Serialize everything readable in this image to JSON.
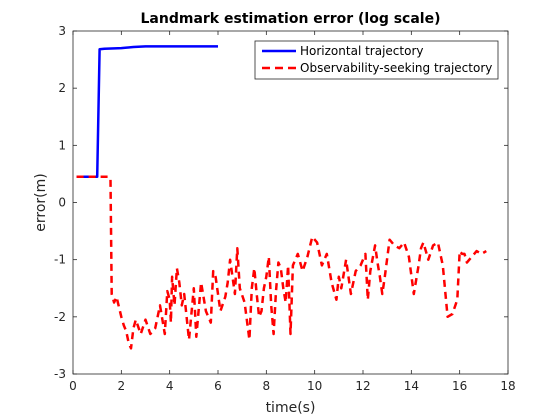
{
  "chart_data": {
    "type": "line",
    "title": "Landmark estimation error (log scale)",
    "xlabel": "time(s)",
    "ylabel": "error(m)",
    "xlim": [
      0,
      18
    ],
    "ylim": [
      -3,
      3
    ],
    "xticks": [
      0,
      2,
      4,
      6,
      8,
      10,
      12,
      14,
      16,
      18
    ],
    "yticks": [
      -3,
      -2,
      -1,
      0,
      1,
      2,
      3
    ],
    "grid": false,
    "legend_position": "top-right",
    "series": [
      {
        "name": "Horizontal trajectory",
        "color": "#0000ff",
        "line_style": "solid",
        "x": [
          0.15,
          1.0,
          1.1,
          1.3,
          2.0,
          2.5,
          3.0,
          4.0,
          5.0,
          6.0
        ],
        "y": [
          0.45,
          0.45,
          2.68,
          2.69,
          2.7,
          2.72,
          2.73,
          2.73,
          2.73,
          2.73
        ]
      },
      {
        "name": "Observability-seeking trajectory",
        "color": "#ff0000",
        "line_style": "dashed",
        "x": [
          0.15,
          1.0,
          1.1,
          1.5,
          1.55,
          1.6,
          1.7,
          1.8,
          2.0,
          2.1,
          2.2,
          2.3,
          2.4,
          2.5,
          2.6,
          2.8,
          3.0,
          3.2,
          3.4,
          3.6,
          3.8,
          3.9,
          4.0,
          4.05,
          4.1,
          4.2,
          4.3,
          4.4,
          4.5,
          4.6,
          4.8,
          4.9,
          5.0,
          5.1,
          5.3,
          5.5,
          5.7,
          5.8,
          5.9,
          6.1,
          6.3,
          6.4,
          6.5,
          6.6,
          6.7,
          6.8,
          6.9,
          7.1,
          7.3,
          7.4,
          7.5,
          7.6,
          7.7,
          7.8,
          7.9,
          8.0,
          8.1,
          8.2,
          8.3,
          8.4,
          8.5,
          8.6,
          8.7,
          8.8,
          8.9,
          9.0,
          9.1,
          9.3,
          9.5,
          9.7,
          9.9,
          10.1,
          10.3,
          10.5,
          10.7,
          10.9,
          11.0,
          11.1,
          11.3,
          11.5,
          11.7,
          11.9,
          12.1,
          12.2,
          12.3,
          12.5,
          12.6,
          12.7,
          12.8,
          12.9,
          13.1,
          13.3,
          13.5,
          13.7,
          13.9,
          14.1,
          14.3,
          14.4,
          14.5,
          14.7,
          14.9,
          15.1,
          15.3,
          15.5,
          15.7,
          15.9,
          16.0,
          16.1,
          16.2,
          16.3,
          16.5,
          16.7,
          16.9,
          17.1
        ],
        "y": [
          0.45,
          0.45,
          0.45,
          0.45,
          0.4,
          -1.6,
          -1.75,
          -1.65,
          -2.0,
          -2.15,
          -2.25,
          -2.45,
          -2.55,
          -2.2,
          -2.05,
          -2.3,
          -2.05,
          -2.3,
          -2.2,
          -1.8,
          -2.3,
          -1.55,
          -1.7,
          -2.1,
          -1.3,
          -1.8,
          -1.15,
          -1.4,
          -1.8,
          -1.6,
          -2.4,
          -1.95,
          -1.5,
          -2.35,
          -1.4,
          -1.9,
          -2.1,
          -1.2,
          -1.3,
          -1.9,
          -1.65,
          -1.4,
          -1.0,
          -1.3,
          -1.6,
          -0.8,
          -1.5,
          -1.75,
          -2.4,
          -1.5,
          -1.15,
          -1.6,
          -2.0,
          -1.9,
          -1.5,
          -1.3,
          -0.95,
          -1.8,
          -2.3,
          -1.55,
          -1.05,
          -1.15,
          -1.5,
          -1.75,
          -1.1,
          -2.3,
          -1.1,
          -0.9,
          -1.2,
          -0.95,
          -0.6,
          -0.7,
          -1.1,
          -0.9,
          -1.4,
          -1.7,
          -1.3,
          -1.5,
          -1.0,
          -1.6,
          -1.2,
          -1.1,
          -0.9,
          -1.7,
          -1.2,
          -0.75,
          -1.05,
          -1.3,
          -1.6,
          -1.3,
          -0.65,
          -0.75,
          -0.8,
          -0.7,
          -0.95,
          -1.6,
          -1.1,
          -0.8,
          -0.7,
          -1.0,
          -0.75,
          -0.7,
          -1.1,
          -2.0,
          -1.95,
          -1.7,
          -0.85,
          -0.9,
          -0.9,
          -1.05,
          -0.95,
          -0.85,
          -0.9,
          -0.85
        ]
      }
    ]
  }
}
